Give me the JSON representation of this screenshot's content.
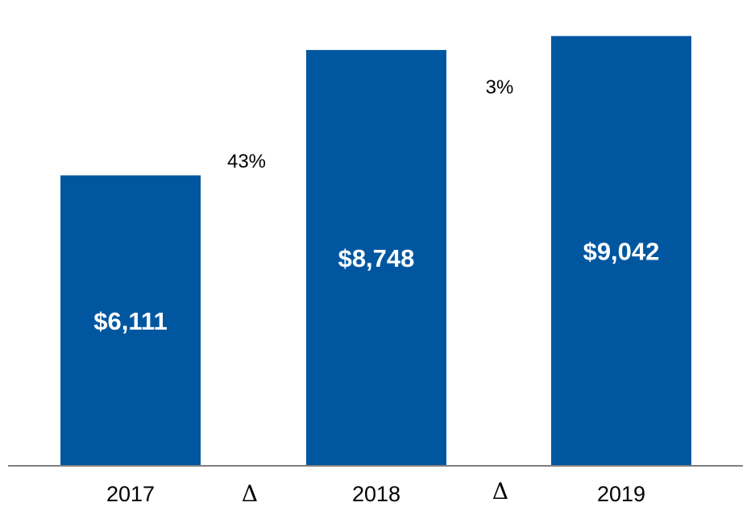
{
  "chart_data": {
    "type": "bar",
    "categories": [
      "2017",
      "2018",
      "2019"
    ],
    "values": [
      6111,
      8748,
      9042
    ],
    "value_labels": [
      "$6,111",
      "$8,748",
      "$9,042"
    ],
    "deltas": [
      {
        "symbol": "Δ",
        "label": "43%"
      },
      {
        "symbol": "Δ",
        "label": "3%"
      }
    ],
    "title": "",
    "xlabel": "",
    "ylabel": "",
    "ylim": [
      0,
      9800
    ],
    "grid": false,
    "bar_color": "#0057A0",
    "axis_color": "#7F7F7F"
  }
}
